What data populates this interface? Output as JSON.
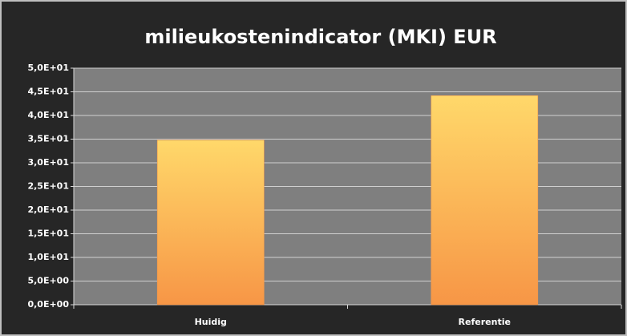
{
  "chart_data": {
    "type": "bar",
    "title": "milieukostenindicator (MKI) EUR",
    "categories": [
      "Huidig",
      "Referentie"
    ],
    "values": [
      34.8,
      44.2
    ],
    "color": "#f79646",
    "ylim": [
      0,
      50
    ],
    "yticks": [
      {
        "value": 0,
        "label": "0,0E+00"
      },
      {
        "value": 5,
        "label": "5,0E+00"
      },
      {
        "value": 10,
        "label": "1,0E+01"
      },
      {
        "value": 15,
        "label": "1,5E+01"
      },
      {
        "value": 20,
        "label": "2,0E+01"
      },
      {
        "value": 25,
        "label": "2,5E+01"
      },
      {
        "value": 30,
        "label": "3,0E+01"
      },
      {
        "value": 35,
        "label": "3,5E+01"
      },
      {
        "value": 40,
        "label": "4,0E+01"
      },
      {
        "value": 45,
        "label": "4,5E+01"
      },
      {
        "value": 50,
        "label": "5,0E+01"
      }
    ],
    "grid": true
  }
}
